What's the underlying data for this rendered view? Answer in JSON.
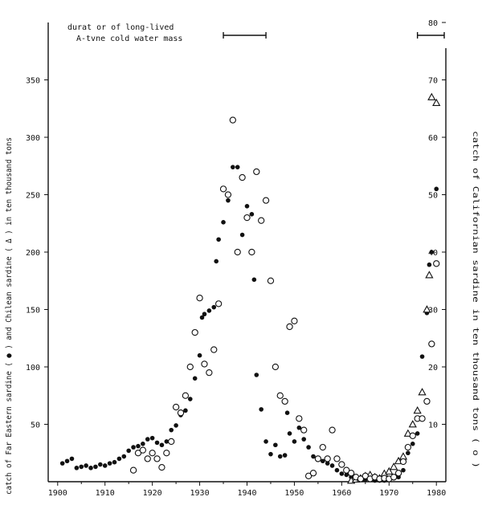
{
  "chart_data": {
    "type": "scatter",
    "legend": {
      "line1": "durat or of long-lived",
      "line2": "A-tvne cold water mass"
    },
    "xlabel": "",
    "ylabel_left": "catch of Far Eastern sardine ( ● ) and Chilean sardine ( Δ ) in ten thousand tons",
    "ylabel_right": "catch of Californian sardine in ten thousand tons ( o )",
    "xlim": [
      1898,
      1982
    ],
    "ylim_left": [
      0,
      400
    ],
    "ylim_right": [
      0,
      80
    ],
    "x_ticks": [
      "1900",
      "1910",
      "1920",
      "1930",
      "1940",
      "1950",
      "1960",
      "1970",
      "1980"
    ],
    "y_ticks_left": [
      "50",
      "100",
      "150",
      "200",
      "250",
      "300",
      "350"
    ],
    "y_ticks_right": [
      "10",
      "20",
      "30",
      "40",
      "50",
      "60",
      "70",
      "80"
    ],
    "cold_water_periods": [
      {
        "start": 1935,
        "end": 1944
      },
      {
        "start": 1976,
        "end": 1982
      }
    ],
    "series": [
      {
        "axis": "left",
        "marker": "filled-circle",
        "points": [
          [
            1901,
            16
          ],
          [
            1902,
            18
          ],
          [
            1903,
            20
          ],
          [
            1904,
            12
          ],
          [
            1905,
            13
          ],
          [
            1906,
            14
          ],
          [
            1907,
            12
          ],
          [
            1908,
            13
          ],
          [
            1909,
            15
          ],
          [
            1910,
            14
          ],
          [
            1911,
            16
          ],
          [
            1912,
            17
          ],
          [
            1913,
            20
          ],
          [
            1914,
            22
          ],
          [
            1915,
            27
          ],
          [
            1916,
            30
          ],
          [
            1917,
            31
          ],
          [
            1918,
            33
          ],
          [
            1919,
            37
          ],
          [
            1920,
            38
          ],
          [
            1921,
            34
          ],
          [
            1922,
            32
          ],
          [
            1923,
            35
          ],
          [
            1924,
            45
          ],
          [
            1925,
            49
          ],
          [
            1926,
            58
          ],
          [
            1927,
            62
          ],
          [
            1928,
            72
          ],
          [
            1929,
            90
          ],
          [
            1930,
            110
          ],
          [
            1930.5,
            143
          ],
          [
            1931,
            146
          ],
          [
            1932,
            149
          ],
          [
            1933,
            152
          ],
          [
            1933.5,
            192
          ],
          [
            1934,
            211
          ],
          [
            1935,
            226
          ],
          [
            1936,
            245
          ],
          [
            1937,
            274
          ],
          [
            1938,
            274
          ],
          [
            1939,
            215
          ],
          [
            1940,
            240
          ],
          [
            1941,
            233
          ],
          [
            1941.5,
            176
          ],
          [
            1942,
            93
          ],
          [
            1943,
            63
          ],
          [
            1944,
            35
          ],
          [
            1945,
            24
          ],
          [
            1946,
            32
          ],
          [
            1947,
            22
          ],
          [
            1948,
            23
          ],
          [
            1948.5,
            60
          ],
          [
            1949,
            42
          ],
          [
            1950,
            35
          ],
          [
            1951,
            47
          ],
          [
            1952,
            37
          ],
          [
            1953,
            30
          ],
          [
            1954,
            22
          ],
          [
            1955,
            19
          ],
          [
            1956,
            18
          ],
          [
            1957,
            16
          ],
          [
            1958,
            14
          ],
          [
            1959,
            10
          ],
          [
            1960,
            7
          ],
          [
            1961,
            6
          ],
          [
            1962,
            4
          ],
          [
            1963,
            3
          ],
          [
            1964,
            3
          ],
          [
            1965,
            2
          ],
          [
            1966,
            2
          ],
          [
            1967,
            1
          ],
          [
            1968,
            1
          ],
          [
            1969,
            1
          ],
          [
            1970,
            2
          ],
          [
            1971,
            3
          ],
          [
            1972,
            4
          ],
          [
            1973,
            10
          ],
          [
            1974,
            25
          ],
          [
            1975,
            33
          ],
          [
            1976,
            42
          ],
          [
            1977,
            109
          ],
          [
            1978,
            147
          ],
          [
            1978.5,
            189
          ],
          [
            1979,
            200
          ],
          [
            1980,
            255
          ]
        ]
      },
      {
        "axis": "left",
        "marker": "triangle",
        "points": [
          [
            1962,
            1
          ],
          [
            1963,
            2
          ],
          [
            1964,
            3
          ],
          [
            1965,
            5
          ],
          [
            1966,
            6
          ],
          [
            1967,
            4
          ],
          [
            1968,
            3
          ],
          [
            1969,
            7
          ],
          [
            1970,
            9
          ],
          [
            1971,
            13
          ],
          [
            1972,
            18
          ],
          [
            1973,
            22
          ],
          [
            1974,
            42
          ],
          [
            1975,
            50
          ],
          [
            1976,
            62
          ],
          [
            1977,
            78
          ],
          [
            1978,
            150
          ],
          [
            1978.5,
            180
          ],
          [
            1979,
            335
          ],
          [
            1980,
            330
          ]
        ]
      },
      {
        "axis": "right",
        "marker": "open-circle",
        "points": [
          [
            1916,
            2
          ],
          [
            1917,
            5
          ],
          [
            1918,
            5.5
          ],
          [
            1919,
            4
          ],
          [
            1920,
            5
          ],
          [
            1921,
            4
          ],
          [
            1922,
            2.5
          ],
          [
            1923,
            5
          ],
          [
            1924,
            7
          ],
          [
            1925,
            13
          ],
          [
            1926,
            12
          ],
          [
            1927,
            15
          ],
          [
            1928,
            20
          ],
          [
            1929,
            26
          ],
          [
            1930,
            32
          ],
          [
            1931,
            20.5
          ],
          [
            1932,
            19
          ],
          [
            1933,
            23
          ],
          [
            1934,
            31
          ],
          [
            1935,
            51
          ],
          [
            1936,
            50
          ],
          [
            1937,
            63
          ],
          [
            1938,
            40
          ],
          [
            1939,
            53
          ],
          [
            1940,
            46
          ],
          [
            1941,
            40
          ],
          [
            1942,
            54
          ],
          [
            1943,
            45.5
          ],
          [
            1944,
            49
          ],
          [
            1945,
            35
          ],
          [
            1946,
            20
          ],
          [
            1947,
            15
          ],
          [
            1948,
            14
          ],
          [
            1949,
            27
          ],
          [
            1950,
            28
          ],
          [
            1951,
            11
          ],
          [
            1952,
            9
          ],
          [
            1953,
            1
          ],
          [
            1954,
            1.5
          ],
          [
            1955,
            4
          ],
          [
            1956,
            6
          ],
          [
            1957,
            4
          ],
          [
            1958,
            9
          ],
          [
            1959,
            4
          ],
          [
            1960,
            3
          ],
          [
            1961,
            2
          ],
          [
            1962,
            1.5
          ],
          [
            1963,
            0.8
          ],
          [
            1964,
            0.5
          ],
          [
            1965,
            1
          ],
          [
            1966,
            0.5
          ],
          [
            1967,
            0.8
          ],
          [
            1968,
            0.5
          ],
          [
            1969,
            0.6
          ],
          [
            1970,
            0.5
          ],
          [
            1971,
            0.8
          ],
          [
            1972,
            1.5
          ],
          [
            1973,
            3.5
          ],
          [
            1974,
            6
          ],
          [
            1975,
            8
          ],
          [
            1976,
            11
          ],
          [
            1977,
            11
          ],
          [
            1978,
            14
          ],
          [
            1979,
            24
          ],
          [
            1980,
            38
          ]
        ]
      }
    ]
  }
}
